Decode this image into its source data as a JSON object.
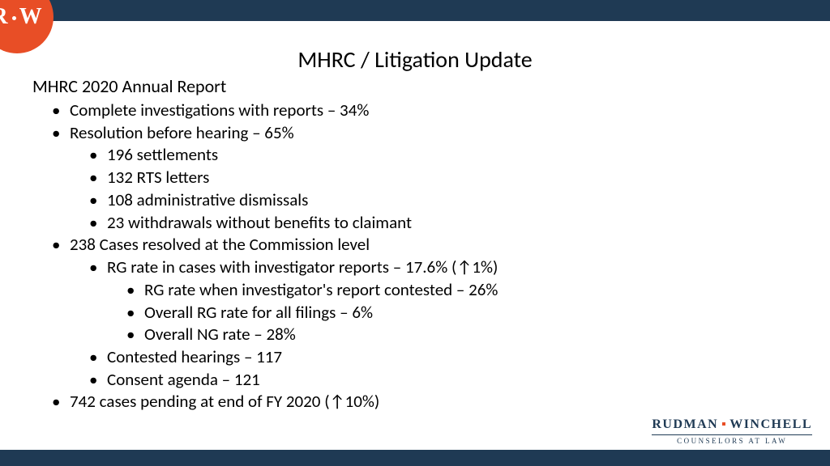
{
  "colors": {
    "bar": "#1f3a54",
    "logo_bg": "#e84e26",
    "logo_fg": "#ffffff",
    "text": "#000000",
    "background": "#ffffff"
  },
  "typography": {
    "title_fontsize": 28,
    "body_fontsize": 21,
    "subtitle_fontsize": 22,
    "font_family": "Calibri"
  },
  "logo": {
    "left": "R",
    "right": "W"
  },
  "title": "MHRC / Litigation Update",
  "subtitle": "MHRC 2020 Annual Report",
  "l1": {
    "i0": "Complete investigations with reports – 34%",
    "i1": "Resolution before hearing – 65%",
    "i2": "238 Cases resolved at the Commission level",
    "i3": "742 cases pending at end of FY 2020 (↑10%)"
  },
  "l2_under_i1": {
    "a": "196 settlements",
    "b": "132 RTS letters",
    "c": "108 administrative dismissals",
    "d": "23 withdrawals without benefits to claimant"
  },
  "l2_under_i2": {
    "a": "RG rate in cases with investigator reports – 17.6% (↑1%)",
    "b": "Contested hearings – 117",
    "c": "Consent agenda – 121"
  },
  "l3_under_i2a": {
    "a": "RG rate when investigator's report contested – 26%",
    "b": "Overall RG rate for all filings – 6%",
    "c": "Overall NG rate – 28%"
  },
  "footer": {
    "brand_left": "RUDMAN",
    "brand_right": "WINCHELL",
    "tagline": "COUNSELORS AT LAW"
  }
}
